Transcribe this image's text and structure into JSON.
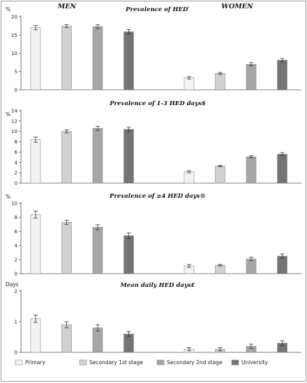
{
  "colors": {
    "Primary": "#f3f3f3",
    "Secondary 1st stage": "#d0d0d0",
    "Secondary 2nd stage": "#a6a6a6",
    "University": "#747474",
    "bar_stroke": "#8a8a8a",
    "axis": "#555555"
  },
  "chart_data": [
    {
      "type": "bar",
      "title": "Prevalence of HEDʹ",
      "ylabel": "%",
      "ylim": [
        0,
        20
      ],
      "yticks": [
        0,
        5,
        10,
        15,
        20
      ],
      "group_labels": [
        "MEN",
        "WOMEN"
      ],
      "categories": [
        "Men",
        "Women"
      ],
      "series": [
        {
          "name": "Primary",
          "values": [
            17.0,
            3.3
          ],
          "errors": [
            0.6,
            0.35
          ]
        },
        {
          "name": "Secondary 1st stage",
          "values": [
            17.4,
            4.5
          ],
          "errors": [
            0.4,
            0.25
          ]
        },
        {
          "name": "Secondary 2nd stage",
          "values": [
            17.3,
            7.0
          ],
          "errors": [
            0.5,
            0.45
          ]
        },
        {
          "name": "University",
          "values": [
            15.9,
            8.1
          ],
          "errors": [
            0.6,
            0.45
          ]
        }
      ]
    },
    {
      "type": "bar",
      "title": "Prevalence of 1-3 HED days$",
      "ylabel": "%",
      "ylim": [
        0,
        14
      ],
      "yticks": [
        0,
        2,
        4,
        6,
        8,
        10,
        12,
        14
      ],
      "categories": [
        "Men",
        "Women"
      ],
      "series": [
        {
          "name": "Primary",
          "values": [
            8.4,
            2.2
          ],
          "errors": [
            0.5,
            0.2
          ]
        },
        {
          "name": "Secondary 1st stage",
          "values": [
            10.0,
            3.3
          ],
          "errors": [
            0.3,
            0.15
          ]
        },
        {
          "name": "Secondary 2nd stage",
          "values": [
            10.6,
            5.1
          ],
          "errors": [
            0.4,
            0.2
          ]
        },
        {
          "name": "University",
          "values": [
            10.4,
            5.6
          ],
          "errors": [
            0.4,
            0.3
          ]
        }
      ]
    },
    {
      "type": "bar",
      "title": "Prevalence of ≥4 HED days®",
      "ylabel": "%",
      "ylim": [
        0,
        10
      ],
      "yticks": [
        0,
        2,
        4,
        6,
        8,
        10
      ],
      "categories": [
        "Men",
        "Women"
      ],
      "series": [
        {
          "name": "Primary",
          "values": [
            8.4,
            1.1
          ],
          "errors": [
            0.5,
            0.2
          ]
        },
        {
          "name": "Secondary 1st stage",
          "values": [
            7.3,
            1.2
          ],
          "errors": [
            0.3,
            0.1
          ]
        },
        {
          "name": "Secondary 2nd stage",
          "values": [
            6.6,
            2.1
          ],
          "errors": [
            0.35,
            0.25
          ]
        },
        {
          "name": "University",
          "values": [
            5.4,
            2.5
          ],
          "errors": [
            0.4,
            0.3
          ]
        }
      ]
    },
    {
      "type": "bar",
      "title": "Mean daily HED days£",
      "ylabel": "Days",
      "ylim": [
        0,
        2
      ],
      "yticks": [
        0,
        1,
        2
      ],
      "categories": [
        "Men",
        "Women"
      ],
      "series": [
        {
          "name": "Primary",
          "values": [
            1.1,
            0.1
          ],
          "errors": [
            0.12,
            0.05
          ]
        },
        {
          "name": "Secondary 1st stage",
          "values": [
            0.9,
            0.1
          ],
          "errors": [
            0.1,
            0.05
          ]
        },
        {
          "name": "Secondary 2nd stage",
          "values": [
            0.8,
            0.2
          ],
          "errors": [
            0.1,
            0.07
          ]
        },
        {
          "name": "University",
          "values": [
            0.6,
            0.3
          ],
          "errors": [
            0.08,
            0.08
          ]
        }
      ]
    }
  ],
  "legend": [
    "Primary",
    "Secondary 1st stage",
    "Secondary 2nd stage",
    "University"
  ]
}
